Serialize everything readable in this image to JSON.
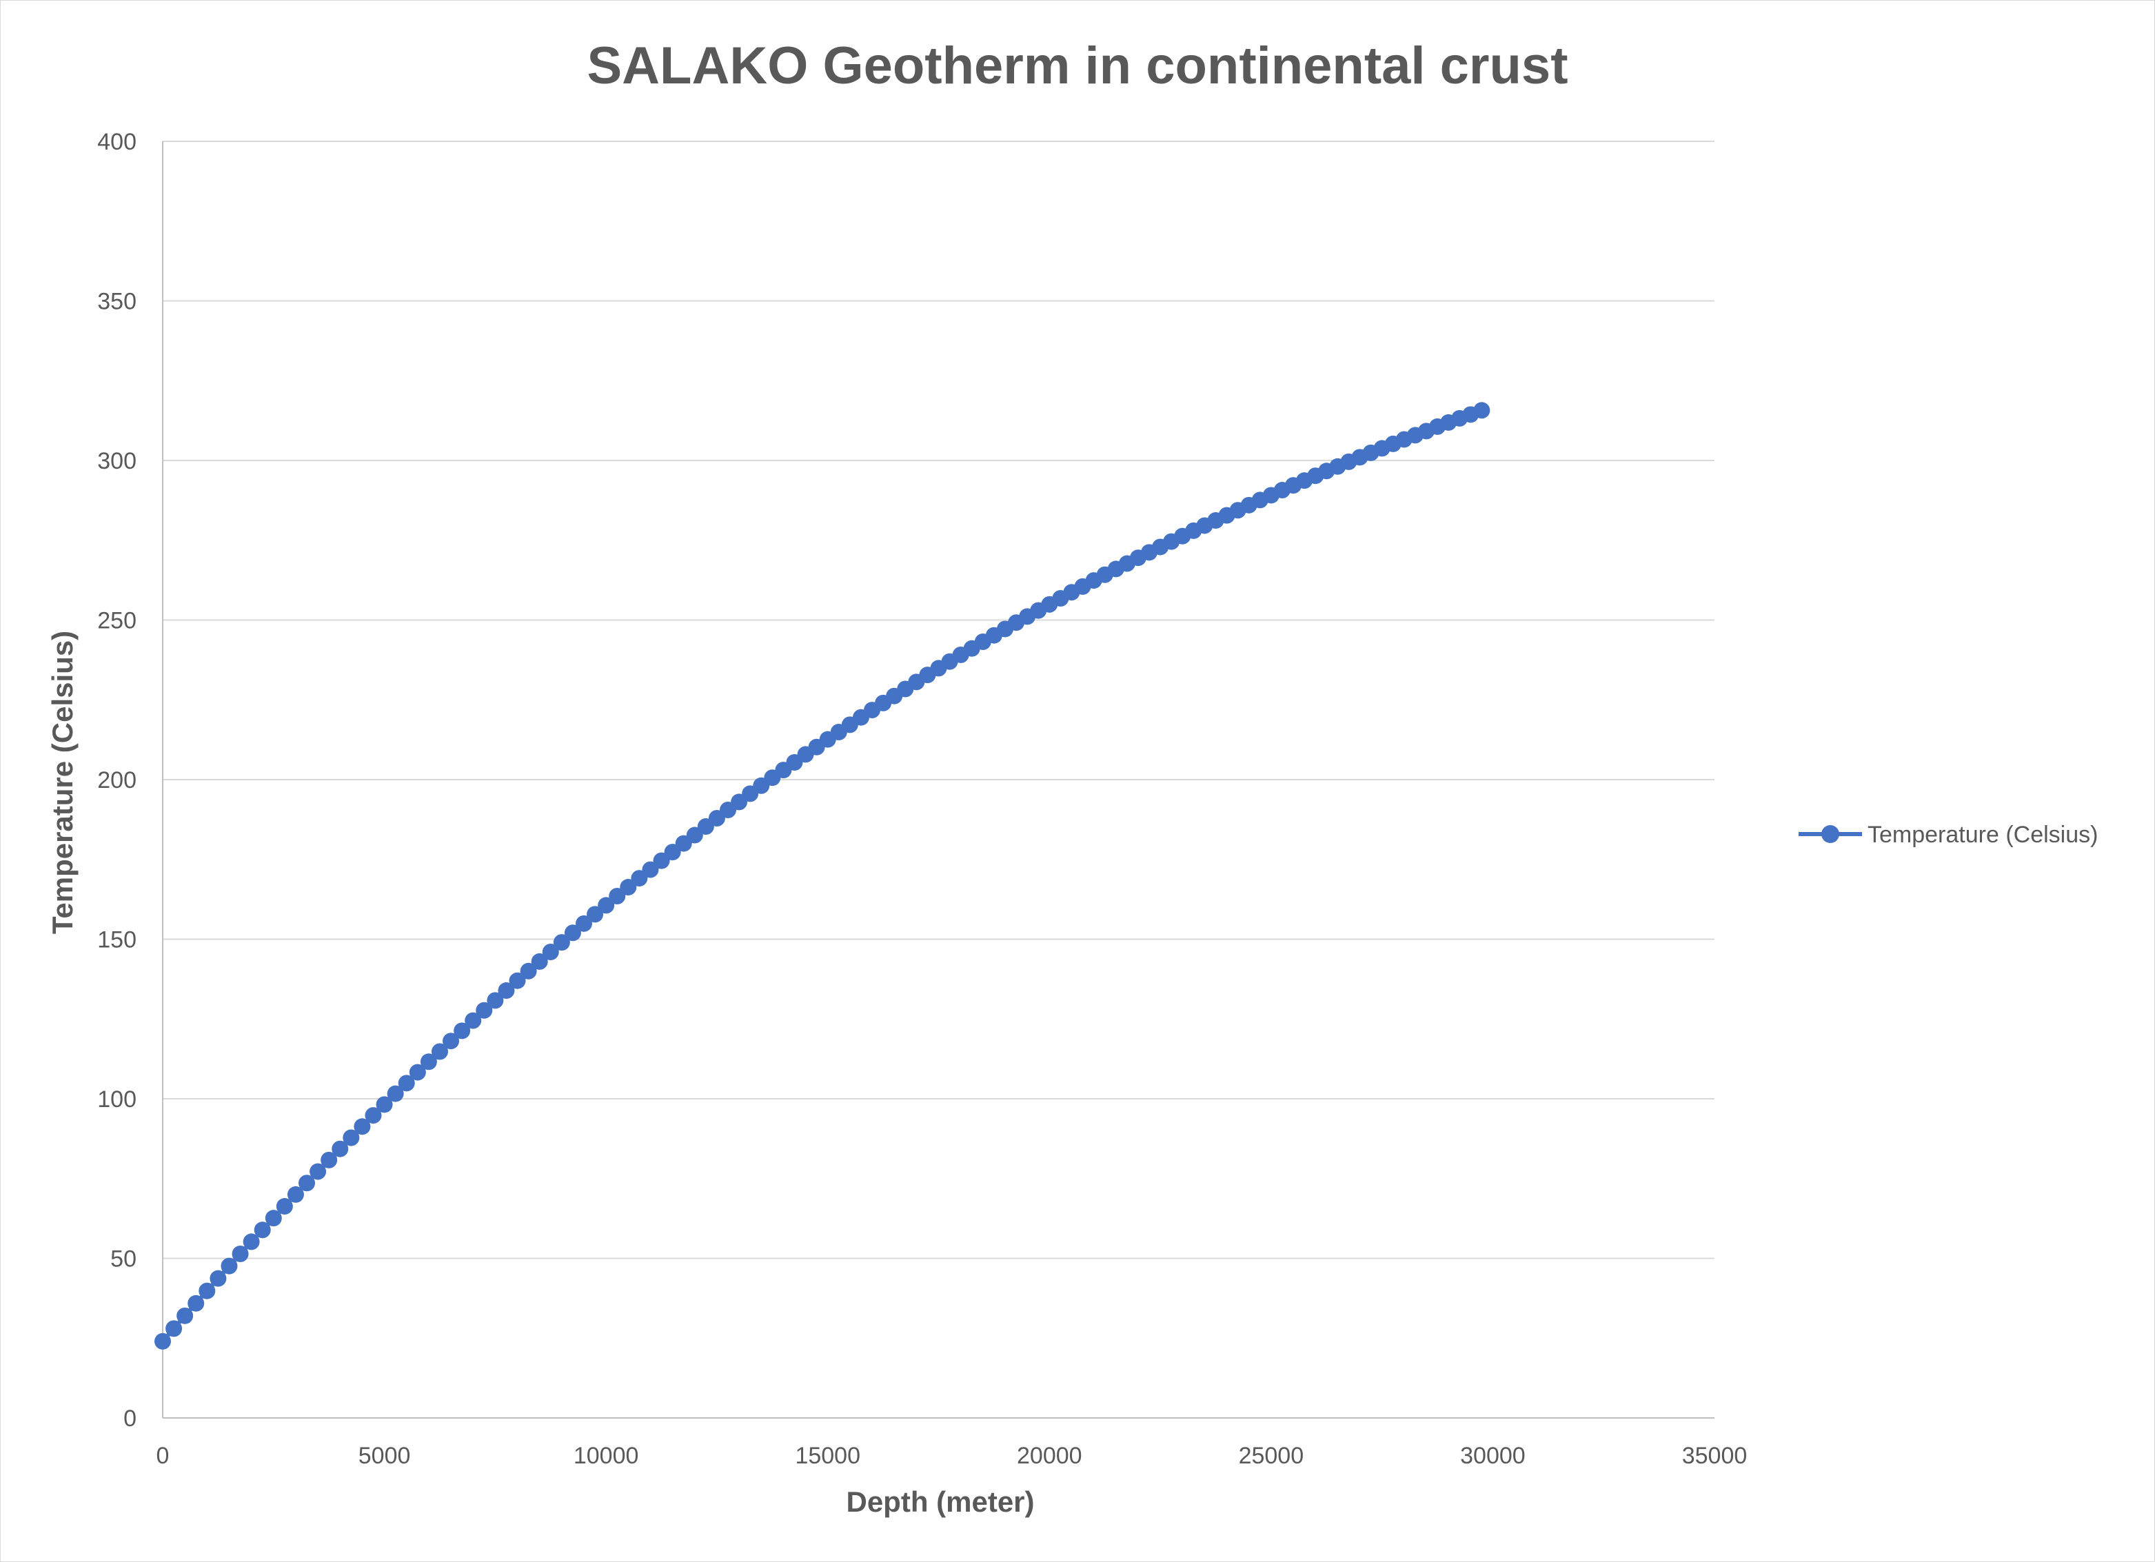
{
  "chart_data": {
    "type": "scatter",
    "title": "SALAKO Geotherm in continental crust",
    "xlabel": "Depth (meter)",
    "ylabel": "Temperature (Celsius)",
    "xlim": [
      0,
      35000
    ],
    "ylim": [
      0,
      400
    ],
    "xticks": [
      0,
      5000,
      10000,
      15000,
      20000,
      25000,
      30000,
      35000
    ],
    "yticks": [
      0,
      50,
      100,
      150,
      200,
      250,
      300,
      350,
      400
    ],
    "grid": "horizontal",
    "legend_position": "right",
    "colors": {
      "series": "#4472C4",
      "grid": "#d9d9d9",
      "axis": "#bfbfbf",
      "text": "#595959"
    },
    "series": [
      {
        "name": "Temperature (Celsius)",
        "x": [
          0,
          250,
          500,
          750,
          1000,
          1250,
          1500,
          1750,
          2000,
          2250,
          2500,
          2750,
          3000,
          3250,
          3500,
          3750,
          4000,
          4250,
          4500,
          4750,
          5000,
          5250,
          5500,
          5750,
          6000,
          6250,
          6500,
          6750,
          7000,
          7250,
          7500,
          7750,
          8000,
          8250,
          8500,
          8750,
          9000,
          9250,
          9500,
          9750,
          10000,
          10250,
          10500,
          10750,
          11000,
          11250,
          11500,
          11750,
          12000,
          12250,
          12500,
          12750,
          13000,
          13250,
          13500,
          13750,
          14000,
          14250,
          14500,
          14750,
          15000,
          15250,
          15500,
          15750,
          16000,
          16250,
          16500,
          16750,
          17000,
          17250,
          17500,
          17750,
          18000,
          18250,
          18500,
          18750,
          19000,
          19250,
          19500,
          19750,
          20000,
          20250,
          20500,
          20750,
          21000,
          21250,
          21500,
          21750,
          22000,
          22250,
          22500,
          22750,
          23000,
          23250,
          23500,
          23750,
          24000,
          24250,
          24500,
          24750,
          25000,
          25250,
          25500,
          25750,
          26000,
          26250,
          26500,
          26750,
          27000,
          27250,
          27500,
          27750,
          28000,
          28250,
          28500,
          28750,
          29000,
          29250,
          29500,
          29750
        ],
        "y": [
          24.0,
          28.0,
          32.0,
          35.9,
          39.8,
          43.7,
          47.6,
          51.4,
          55.2,
          58.9,
          62.6,
          66.3,
          70.0,
          73.6,
          77.2,
          80.8,
          84.3,
          87.8,
          91.3,
          94.8,
          98.2,
          101.6,
          104.9,
          108.3,
          111.6,
          114.8,
          118.1,
          121.3,
          124.5,
          127.7,
          130.8,
          133.9,
          137.0,
          140.0,
          143.0,
          146.0,
          149.0,
          152.0,
          154.9,
          157.8,
          160.6,
          163.5,
          166.3,
          169.1,
          171.8,
          174.6,
          177.3,
          180.0,
          182.6,
          185.3,
          187.9,
          190.5,
          193.0,
          195.6,
          198.1,
          200.6,
          203.0,
          205.4,
          207.9,
          210.2,
          212.6,
          214.9,
          217.2,
          219.5,
          221.8,
          224.0,
          226.2,
          228.4,
          230.6,
          232.8,
          234.9,
          237.0,
          239.1,
          241.1,
          243.2,
          245.2,
          247.2,
          249.2,
          251.1,
          253.0,
          254.9,
          256.8,
          258.7,
          260.5,
          262.4,
          264.2,
          266.0,
          267.7,
          269.5,
          271.2,
          272.9,
          274.6,
          276.3,
          278.0,
          279.6,
          281.2,
          282.8,
          284.4,
          286.0,
          287.6,
          289.1,
          290.7,
          292.2,
          293.7,
          295.2,
          296.7,
          298.1,
          299.6,
          301.0,
          302.4,
          303.8,
          305.2,
          306.6,
          307.9,
          309.2,
          310.6,
          311.9,
          313.2,
          314.4,
          315.7
        ]
      }
    ]
  }
}
